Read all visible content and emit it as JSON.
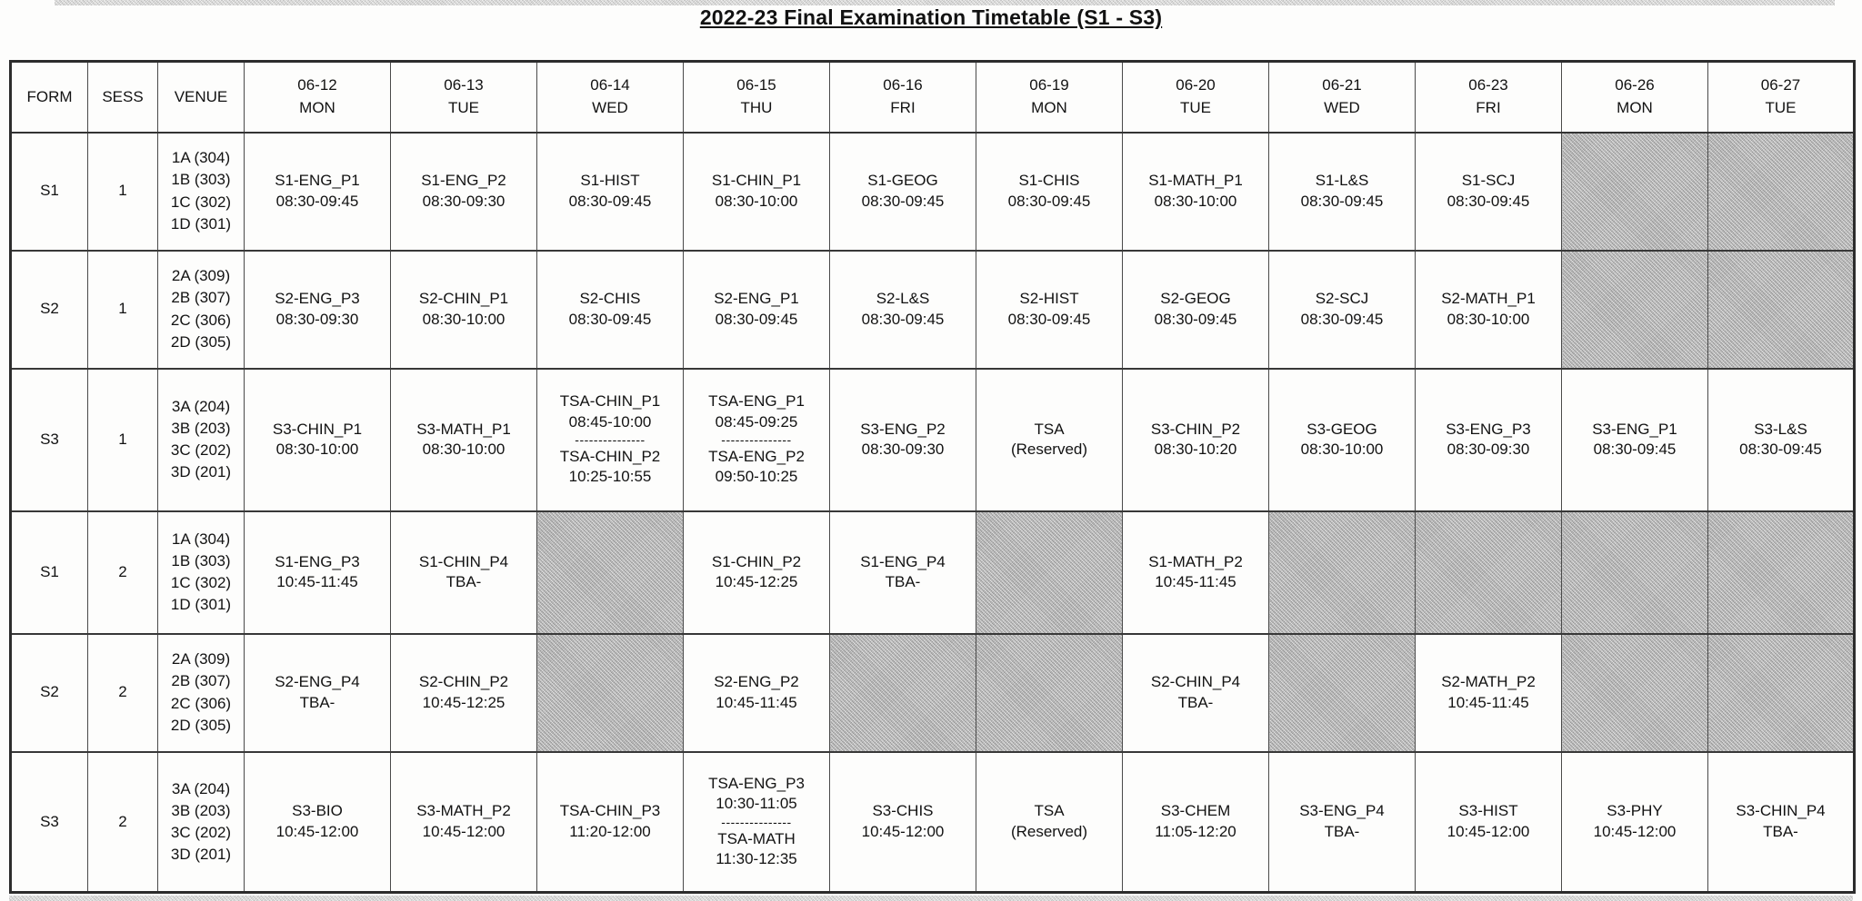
{
  "title": "2022-23 Final Examination Timetable (S1 - S3)",
  "colors": {
    "shaded_cell": "#bdbdbd",
    "text": "#121212",
    "border": "#4a4a4a"
  },
  "table": {
    "divider": "---------------",
    "fixed_headers": [
      "FORM",
      "SESS",
      "VENUE"
    ],
    "date_headers": [
      {
        "date": "06-12",
        "day": "MON"
      },
      {
        "date": "06-13",
        "day": "TUE"
      },
      {
        "date": "06-14",
        "day": "WED"
      },
      {
        "date": "06-15",
        "day": "THU"
      },
      {
        "date": "06-16",
        "day": "FRI"
      },
      {
        "date": "06-19",
        "day": "MON"
      },
      {
        "date": "06-20",
        "day": "TUE"
      },
      {
        "date": "06-21",
        "day": "WED"
      },
      {
        "date": "06-23",
        "day": "FRI"
      },
      {
        "date": "06-26",
        "day": "MON"
      },
      {
        "date": "06-27",
        "day": "TUE"
      }
    ],
    "rows": [
      {
        "form": "S1",
        "sess": "1",
        "venues": [
          "1A (304)",
          "1B (303)",
          "1C (302)",
          "1D (301)"
        ],
        "cells": [
          {
            "kind": "exam",
            "lines": [
              "S1-ENG_P1",
              "08:30-09:45"
            ]
          },
          {
            "kind": "exam",
            "lines": [
              "S1-ENG_P2",
              "08:30-09:30"
            ]
          },
          {
            "kind": "exam",
            "lines": [
              "S1-HIST",
              "08:30-09:45"
            ]
          },
          {
            "kind": "exam",
            "lines": [
              "S1-CHIN_P1",
              "08:30-10:00"
            ]
          },
          {
            "kind": "exam",
            "lines": [
              "S1-GEOG",
              "08:30-09:45"
            ]
          },
          {
            "kind": "exam",
            "lines": [
              "S1-CHIS",
              "08:30-09:45"
            ]
          },
          {
            "kind": "exam",
            "lines": [
              "S1-MATH_P1",
              "08:30-10:00"
            ]
          },
          {
            "kind": "exam",
            "lines": [
              "S1-L&S",
              "08:30-09:45"
            ]
          },
          {
            "kind": "exam",
            "lines": [
              "S1-SCJ",
              "08:30-09:45"
            ]
          },
          {
            "kind": "shaded"
          },
          {
            "kind": "shaded"
          }
        ]
      },
      {
        "form": "S2",
        "sess": "1",
        "venues": [
          "2A (309)",
          "2B (307)",
          "2C (306)",
          "2D (305)"
        ],
        "cells": [
          {
            "kind": "exam",
            "lines": [
              "S2-ENG_P3",
              "08:30-09:30"
            ]
          },
          {
            "kind": "exam",
            "lines": [
              "S2-CHIN_P1",
              "08:30-10:00"
            ]
          },
          {
            "kind": "exam",
            "lines": [
              "S2-CHIS",
              "08:30-09:45"
            ]
          },
          {
            "kind": "exam",
            "lines": [
              "S2-ENG_P1",
              "08:30-09:45"
            ]
          },
          {
            "kind": "exam",
            "lines": [
              "S2-L&S",
              "08:30-09:45"
            ]
          },
          {
            "kind": "exam",
            "lines": [
              "S2-HIST",
              "08:30-09:45"
            ]
          },
          {
            "kind": "exam",
            "lines": [
              "S2-GEOG",
              "08:30-09:45"
            ]
          },
          {
            "kind": "exam",
            "lines": [
              "S2-SCJ",
              "08:30-09:45"
            ]
          },
          {
            "kind": "exam",
            "lines": [
              "S2-MATH_P1",
              "08:30-10:00"
            ]
          },
          {
            "kind": "shaded"
          },
          {
            "kind": "shaded"
          }
        ]
      },
      {
        "form": "S3",
        "sess": "1",
        "venues": [
          "3A (204)",
          "3B (203)",
          "3C (202)",
          "3D (201)"
        ],
        "cells": [
          {
            "kind": "exam",
            "lines": [
              "S3-CHIN_P1",
              "08:30-10:00"
            ]
          },
          {
            "kind": "exam",
            "lines": [
              "S3-MATH_P1",
              "08:30-10:00"
            ]
          },
          {
            "kind": "split",
            "top": [
              "TSA-CHIN_P1",
              "08:45-10:00"
            ],
            "bottom": [
              "TSA-CHIN_P2",
              "10:25-10:55"
            ]
          },
          {
            "kind": "split",
            "top": [
              "TSA-ENG_P1",
              "08:45-09:25"
            ],
            "bottom": [
              "TSA-ENG_P2",
              "09:50-10:25"
            ]
          },
          {
            "kind": "exam",
            "lines": [
              "S3-ENG_P2",
              "08:30-09:30"
            ]
          },
          {
            "kind": "exam",
            "lines": [
              "TSA",
              "(Reserved)"
            ]
          },
          {
            "kind": "exam",
            "lines": [
              "S3-CHIN_P2",
              "08:30-10:20"
            ]
          },
          {
            "kind": "exam",
            "lines": [
              "S3-GEOG",
              "08:30-10:00"
            ]
          },
          {
            "kind": "exam",
            "lines": [
              "S3-ENG_P3",
              "08:30-09:30"
            ]
          },
          {
            "kind": "exam",
            "lines": [
              "S3-ENG_P1",
              "08:30-09:45"
            ]
          },
          {
            "kind": "exam",
            "lines": [
              "S3-L&S",
              "08:30-09:45"
            ]
          }
        ]
      },
      {
        "form": "S1",
        "sess": "2",
        "venues": [
          "1A (304)",
          "1B (303)",
          "1C (302)",
          "1D (301)"
        ],
        "cells": [
          {
            "kind": "exam",
            "lines": [
              "S1-ENG_P3",
              "10:45-11:45"
            ]
          },
          {
            "kind": "exam",
            "lines": [
              "S1-CHIN_P4",
              "TBA-"
            ]
          },
          {
            "kind": "shaded"
          },
          {
            "kind": "exam",
            "lines": [
              "S1-CHIN_P2",
              "10:45-12:25"
            ]
          },
          {
            "kind": "exam",
            "lines": [
              "S1-ENG_P4",
              "TBA-"
            ]
          },
          {
            "kind": "shaded"
          },
          {
            "kind": "exam",
            "lines": [
              "S1-MATH_P2",
              "10:45-11:45"
            ]
          },
          {
            "kind": "shaded"
          },
          {
            "kind": "shaded"
          },
          {
            "kind": "shaded"
          },
          {
            "kind": "shaded"
          }
        ]
      },
      {
        "form": "S2",
        "sess": "2",
        "venues": [
          "2A (309)",
          "2B (307)",
          "2C (306)",
          "2D (305)"
        ],
        "cells": [
          {
            "kind": "exam",
            "lines": [
              "S2-ENG_P4",
              "TBA-"
            ]
          },
          {
            "kind": "exam",
            "lines": [
              "S2-CHIN_P2",
              "10:45-12:25"
            ]
          },
          {
            "kind": "shaded"
          },
          {
            "kind": "exam",
            "lines": [
              "S2-ENG_P2",
              "10:45-11:45"
            ]
          },
          {
            "kind": "shaded"
          },
          {
            "kind": "shaded"
          },
          {
            "kind": "exam",
            "lines": [
              "S2-CHIN_P4",
              "TBA-"
            ]
          },
          {
            "kind": "shaded"
          },
          {
            "kind": "exam",
            "lines": [
              "S2-MATH_P2",
              "10:45-11:45"
            ]
          },
          {
            "kind": "shaded"
          },
          {
            "kind": "shaded"
          }
        ]
      },
      {
        "form": "S3",
        "sess": "2",
        "venues": [
          "3A (204)",
          "3B (203)",
          "3C (202)",
          "3D (201)"
        ],
        "cells": [
          {
            "kind": "exam",
            "lines": [
              "S3-BIO",
              "10:45-12:00"
            ]
          },
          {
            "kind": "exam",
            "lines": [
              "S3-MATH_P2",
              "10:45-12:00"
            ]
          },
          {
            "kind": "exam",
            "lines": [
              "TSA-CHIN_P3",
              "11:20-12:00"
            ]
          },
          {
            "kind": "split",
            "top": [
              "TSA-ENG_P3",
              "10:30-11:05"
            ],
            "bottom": [
              "TSA-MATH",
              "11:30-12:35"
            ]
          },
          {
            "kind": "exam",
            "lines": [
              "S3-CHIS",
              "10:45-12:00"
            ]
          },
          {
            "kind": "exam",
            "lines": [
              "TSA",
              "(Reserved)"
            ]
          },
          {
            "kind": "exam",
            "lines": [
              "S3-CHEM",
              "11:05-12:20"
            ]
          },
          {
            "kind": "exam",
            "lines": [
              "S3-ENG_P4",
              "TBA-"
            ]
          },
          {
            "kind": "exam",
            "lines": [
              "S3-HIST",
              "10:45-12:00"
            ]
          },
          {
            "kind": "exam",
            "lines": [
              "S3-PHY",
              "10:45-12:00"
            ]
          },
          {
            "kind": "exam",
            "lines": [
              "S3-CHIN_P4",
              "TBA-"
            ]
          }
        ]
      }
    ]
  }
}
